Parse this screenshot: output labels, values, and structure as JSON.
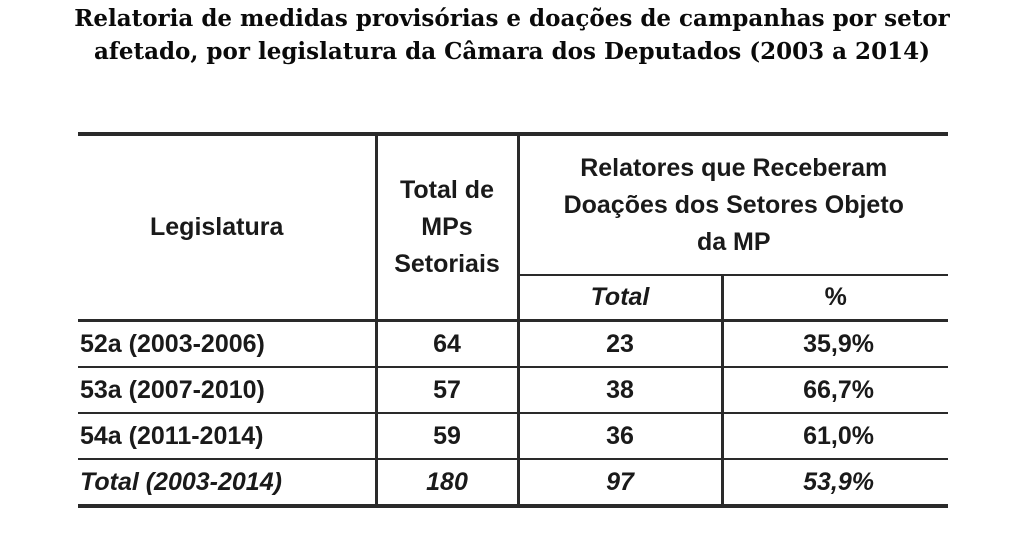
{
  "title": {
    "line1": "Relatoria de medidas provisórias e doações de campanhas por setor",
    "line2": "afetado, por legislatura da Câmara dos Deputados (2003 a 2014)"
  },
  "table": {
    "headers": {
      "legislatura": "Legislatura",
      "total_mps": [
        "Total de",
        "MPs",
        "Setoriais"
      ],
      "relatores": [
        "Relatores que Receberam",
        "Doações dos Setores Objeto",
        "da MP"
      ],
      "sub_total": "Total",
      "sub_pct": "%"
    },
    "rows": [
      {
        "legislatura": "52a (2003-2006)",
        "total_mps": "64",
        "total": "23",
        "pct": "35,9%"
      },
      {
        "legislatura": "53a (2007-2010)",
        "total_mps": "57",
        "total": "38",
        "pct": "66,7%"
      },
      {
        "legislatura": "54a (2011-2014)",
        "total_mps": "59",
        "total": "36",
        "pct": "61,0%"
      }
    ],
    "total_row": {
      "legislatura": "Total (2003-2014)",
      "total_mps": "180",
      "total": "97",
      "pct": "53,9%"
    }
  }
}
